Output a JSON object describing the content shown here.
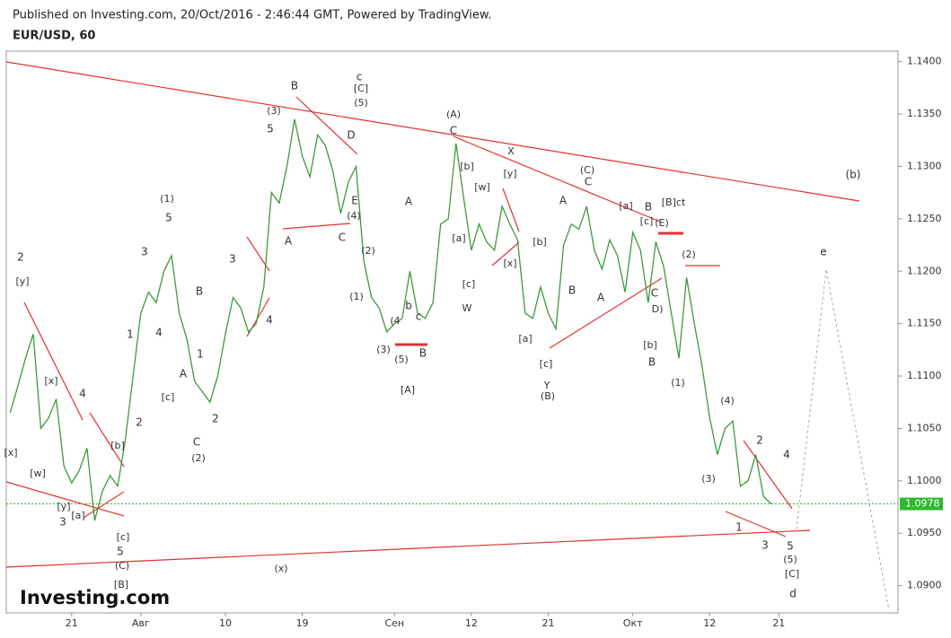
{
  "header": {
    "published": "Published on Investing.com, 20/Oct/2016 - 2:46:44 GMT, Powered by TradingView.",
    "symbol": "EUR/USD, 60",
    "logo": "Investing.com"
  },
  "chart_data": {
    "type": "line",
    "color": "#3c9a3c",
    "last_price_color": "#2eb82e",
    "trendline_color": "#e53030",
    "categories": [
      null,
      null,
      null,
      null,
      null,
      null,
      null,
      null,
      "21",
      null,
      null,
      null,
      null,
      null,
      null,
      null,
      null,
      "Авг",
      null,
      null,
      null,
      null,
      null,
      null,
      null,
      null,
      null,
      null,
      "10",
      null,
      null,
      null,
      null,
      null,
      null,
      null,
      null,
      null,
      "19",
      null,
      null,
      null,
      null,
      null,
      null,
      null,
      null,
      null,
      null,
      null,
      "Сен",
      null,
      null,
      null,
      null,
      null,
      null,
      null,
      null,
      null,
      "12",
      null,
      null,
      null,
      null,
      null,
      null,
      null,
      null,
      null,
      "21",
      null,
      null,
      null,
      null,
      null,
      null,
      null,
      null,
      null,
      null,
      "Окт",
      null,
      null,
      null,
      null,
      null,
      null,
      null,
      null,
      null,
      "12",
      null,
      null,
      null,
      null,
      null,
      null,
      null,
      null,
      "21",
      null,
      null,
      null,
      null,
      null,
      null,
      null,
      null,
      null,
      null,
      null,
      null,
      null,
      null,
      null
    ],
    "values": [
      1.1065,
      1.109,
      1.1117,
      1.114,
      1.105,
      1.106,
      1.1078,
      1.1014,
      1.0998,
      1.101,
      1.1031,
      1.0962,
      1.099,
      1.1005,
      1.0995,
      1.104,
      1.11,
      1.116,
      1.118,
      1.117,
      1.12,
      1.1215,
      1.116,
      1.1135,
      1.1095,
      1.1085,
      1.1075,
      1.11,
      1.114,
      1.1175,
      1.1165,
      1.1142,
      1.115,
      1.1185,
      1.1275,
      1.1265,
      1.13,
      1.1345,
      1.131,
      1.129,
      1.133,
      1.132,
      1.1295,
      1.1255,
      1.1285,
      1.13,
      1.121,
      1.1175,
      1.1165,
      1.1142,
      1.115,
      1.1155,
      1.12,
      1.116,
      1.1155,
      1.117,
      1.1245,
      1.125,
      1.1322,
      1.127,
      1.122,
      1.1245,
      1.1228,
      1.122,
      1.1262,
      1.1245,
      1.123,
      1.116,
      1.1155,
      1.1185,
      1.116,
      1.1145,
      1.1225,
      1.1245,
      1.124,
      1.1262,
      1.122,
      1.1202,
      1.123,
      1.1215,
      1.118,
      1.1237,
      1.122,
      1.117,
      1.1228,
      1.1205,
      1.116,
      1.1117,
      1.1194,
      1.115,
      1.111,
      1.106,
      1.1025,
      1.105,
      1.1057,
      1.0995,
      1.1,
      1.1025,
      1.0985,
      1.0978,
      null,
      null,
      null,
      null,
      null,
      null,
      null,
      null,
      null,
      null,
      null,
      null,
      null,
      null,
      null,
      null
    ],
    "last_price": 1.0978,
    "ylim": [
      1.0874,
      1.141
    ],
    "yticks": [
      {
        "value": 1.09,
        "label": "1.0900"
      },
      {
        "value": 1.095,
        "label": "1.0950"
      },
      {
        "value": 1.1,
        "label": "1.1000"
      },
      {
        "value": 1.105,
        "label": "1.1050"
      },
      {
        "value": 1.11,
        "label": "1.1100"
      },
      {
        "value": 1.115,
        "label": "1.1150"
      },
      {
        "value": 1.12,
        "label": "1.1200"
      },
      {
        "value": 1.125,
        "label": "1.1250"
      },
      {
        "value": 1.13,
        "label": "1.1300"
      },
      {
        "value": 1.135,
        "label": "1.1350"
      },
      {
        "value": 1.14,
        "label": "1.1400"
      }
    ],
    "annotations": [
      "2",
      "[y]",
      "[x]",
      "[x]",
      "4",
      "[w]",
      "3",
      "[a]",
      "[y]",
      "[b]",
      "[c]",
      "5",
      "(C)",
      "[B]",
      "2",
      "1",
      "3",
      "4",
      "(1)",
      "5",
      "B",
      "A",
      "1",
      "[c]",
      "2",
      "C",
      "(2)",
      "3",
      "4",
      "A",
      "(3)",
      "5",
      "B",
      "c",
      "[C]",
      "(5)",
      "D",
      "E",
      "(4)",
      "C",
      "(2)",
      "(1)",
      "A",
      "(4",
      "b",
      "c",
      "(3)",
      "(5)",
      "B",
      "[A]",
      "(x)",
      "(A)",
      "C",
      "X",
      "[b]",
      "[w]",
      "[y]",
      "[a]",
      "[x]",
      "[c]",
      "W",
      "[a]",
      "[b]",
      "[c]",
      "Y",
      "(B)",
      "A",
      "B",
      "(C)",
      "C",
      "A",
      "[a]",
      "B",
      "[B]ct",
      "[c]",
      "(E)",
      "C",
      "D)",
      "[b]",
      "B",
      "(2)",
      "(1)",
      "(4)",
      "(3)",
      "2",
      "1",
      "3",
      "4",
      "5",
      "(5)",
      "[C]",
      "d",
      "e",
      "(b)"
    ]
  }
}
